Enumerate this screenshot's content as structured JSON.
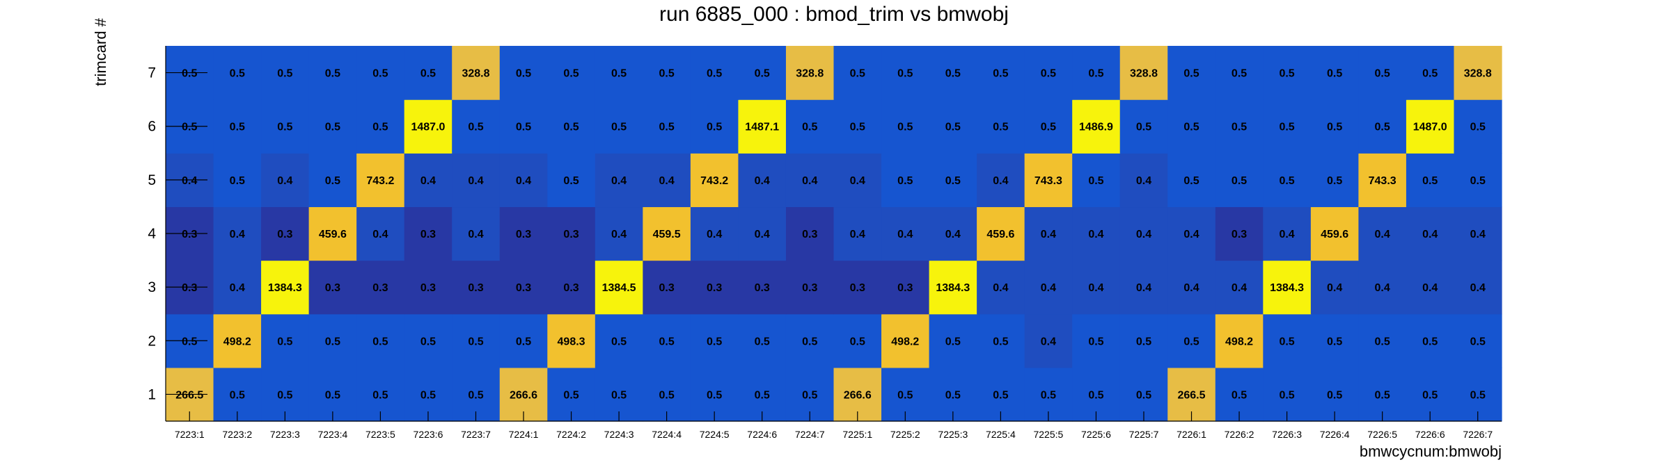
{
  "chart_data": {
    "type": "heatmap",
    "title": "run 6885_000 : bmod_trim vs bmwobj",
    "xlabel": "bmwcycnum:bmwobj",
    "ylabel": "trimcard #",
    "x_categories": [
      "7223:1",
      "7223:2",
      "7223:3",
      "7223:4",
      "7223:5",
      "7223:6",
      "7223:7",
      "7224:1",
      "7224:2",
      "7224:3",
      "7224:4",
      "7224:5",
      "7224:6",
      "7224:7",
      "7225:1",
      "7225:2",
      "7225:3",
      "7225:4",
      "7225:5",
      "7225:6",
      "7225:7",
      "7226:1",
      "7226:2",
      "7226:3",
      "7226:4",
      "7226:5",
      "7226:6",
      "7226:7"
    ],
    "y_categories": [
      "1",
      "2",
      "3",
      "4",
      "5",
      "6",
      "7"
    ],
    "values": [
      [
        "266.5",
        "0.5",
        "0.5",
        "0.5",
        "0.5",
        "0.5",
        "0.5",
        "266.6",
        "0.5",
        "0.5",
        "0.5",
        "0.5",
        "0.5",
        "0.5",
        "266.6",
        "0.5",
        "0.5",
        "0.5",
        "0.5",
        "0.5",
        "0.5",
        "266.5",
        "0.5",
        "0.5",
        "0.5",
        "0.5",
        "0.5",
        "0.5"
      ],
      [
        "0.5",
        "498.2",
        "0.5",
        "0.5",
        "0.5",
        "0.5",
        "0.5",
        "0.5",
        "498.3",
        "0.5",
        "0.5",
        "0.5",
        "0.5",
        "0.5",
        "0.5",
        "498.2",
        "0.5",
        "0.5",
        "0.4",
        "0.5",
        "0.5",
        "0.5",
        "498.2",
        "0.5",
        "0.5",
        "0.5",
        "0.5",
        "0.5"
      ],
      [
        "0.3",
        "0.4",
        "1384.3",
        "0.3",
        "0.3",
        "0.3",
        "0.3",
        "0.3",
        "0.3",
        "1384.5",
        "0.3",
        "0.3",
        "0.3",
        "0.3",
        "0.3",
        "0.3",
        "1384.3",
        "0.4",
        "0.4",
        "0.4",
        "0.4",
        "0.4",
        "0.4",
        "1384.3",
        "0.4",
        "0.4",
        "0.4",
        "0.4"
      ],
      [
        "0.3",
        "0.4",
        "0.3",
        "459.6",
        "0.4",
        "0.3",
        "0.4",
        "0.3",
        "0.3",
        "0.4",
        "459.5",
        "0.4",
        "0.4",
        "0.3",
        "0.4",
        "0.4",
        "0.4",
        "459.6",
        "0.4",
        "0.4",
        "0.4",
        "0.4",
        "0.3",
        "0.4",
        "459.6",
        "0.4",
        "0.4",
        "0.4"
      ],
      [
        "0.4",
        "0.5",
        "0.4",
        "0.5",
        "743.2",
        "0.4",
        "0.4",
        "0.4",
        "0.5",
        "0.4",
        "0.4",
        "743.2",
        "0.4",
        "0.4",
        "0.4",
        "0.5",
        "0.5",
        "0.4",
        "743.3",
        "0.5",
        "0.4",
        "0.5",
        "0.5",
        "0.5",
        "0.5",
        "743.3",
        "0.5",
        "0.5"
      ],
      [
        "0.5",
        "0.5",
        "0.5",
        "0.5",
        "0.5",
        "1487.0",
        "0.5",
        "0.5",
        "0.5",
        "0.5",
        "0.5",
        "0.5",
        "1487.1",
        "0.5",
        "0.5",
        "0.5",
        "0.5",
        "0.5",
        "0.5",
        "1486.9",
        "0.5",
        "0.5",
        "0.5",
        "0.5",
        "0.5",
        "0.5",
        "1487.0",
        "0.5"
      ],
      [
        "0.5",
        "0.5",
        "0.5",
        "0.5",
        "0.5",
        "0.5",
        "328.8",
        "0.5",
        "0.5",
        "0.5",
        "0.5",
        "0.5",
        "0.5",
        "328.8",
        "0.5",
        "0.5",
        "0.5",
        "0.5",
        "0.5",
        "0.5",
        "328.8",
        "0.5",
        "0.5",
        "0.5",
        "0.5",
        "0.5",
        "0.5",
        "328.8"
      ]
    ],
    "colors": {
      "low_dark": "#2838a4",
      "low_mid": "#1f4dbf",
      "low_bright": "#1655d0",
      "mid_gold": "#e7bd45",
      "high_gold": "#f2c12e",
      "highest_yellow": "#f7f30c"
    },
    "grid": false,
    "legend": "none"
  }
}
